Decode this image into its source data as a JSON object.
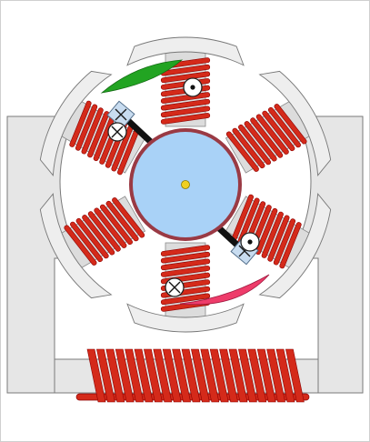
{
  "diagram": {
    "kind": "rotating-machine-cross-section",
    "pole_count": 6,
    "colors": {
      "frame_fill": "#e6e6e6",
      "frame_stroke": "#7a7a7a",
      "coil_copper": "#d42a1a",
      "coil_stroke": "#8c0000",
      "rotor_fill": "#a9d2f7",
      "rotor_ring": "#9a3a44",
      "shaft_dot": "#f0d020",
      "pole_shoe_fill": "#eeeeee",
      "brush_top_marker": "#22a422",
      "brush_bottom_marker": "#ee3c6a",
      "brush_holder": "#c8dcf0",
      "brush_arm": "#111111"
    },
    "symbols": [
      {
        "name": "current-out-of-page",
        "glyph": "dot-in-circle"
      },
      {
        "name": "current-into-page",
        "glyph": "cross-in-circle"
      }
    ]
  }
}
